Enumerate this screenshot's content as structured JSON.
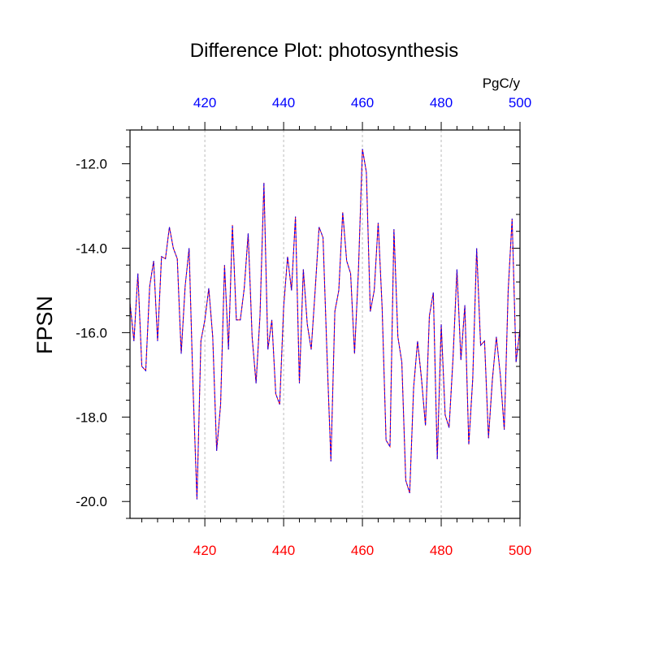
{
  "chart_data": {
    "type": "line",
    "title": "Difference Plot: photosynthesis",
    "units": "PgC/y",
    "ylabel": "FPSN",
    "xlabel": "",
    "xlim": [
      401,
      500
    ],
    "ylim": [
      -20.4,
      -11.2
    ],
    "x_ticks": [
      420,
      440,
      460,
      480,
      500
    ],
    "x_tick_labels": [
      "420",
      "440",
      "460",
      "480",
      "500"
    ],
    "y_ticks": [
      -20,
      -18,
      -16,
      -14,
      -12
    ],
    "y_tick_labels": [
      "-20.0",
      "-18.0",
      "-16.0",
      "-14.0",
      "-12.0"
    ],
    "grid": "vertical dashed at major x ticks",
    "colors": {
      "line_a": "#ff0000",
      "line_b": "#0000ff",
      "bottom_ticks": "#ff0000",
      "top_ticks": "#0000ff",
      "grid": "#bbbbbb"
    },
    "series": [
      {
        "x": [
          401,
          402,
          403,
          404,
          405,
          406,
          407,
          408,
          409,
          410,
          411,
          412,
          413,
          414,
          415,
          416,
          417,
          418,
          419,
          420,
          421,
          422,
          423,
          424,
          425,
          426,
          427,
          428,
          429,
          430,
          431,
          432,
          433,
          434,
          435,
          436,
          437,
          438,
          439,
          440,
          441,
          442,
          443,
          444,
          445,
          446,
          447,
          448,
          449,
          450,
          451,
          452,
          453,
          454,
          455,
          456,
          457,
          458,
          459,
          460,
          461,
          462,
          463,
          464,
          465,
          466,
          467,
          468,
          469,
          470,
          471,
          472,
          473,
          474,
          475,
          476,
          477,
          478,
          479,
          480,
          481,
          482,
          483,
          484,
          485,
          486,
          487,
          488,
          489,
          490,
          491,
          492,
          493,
          494,
          495,
          496,
          497,
          498,
          499,
          500
        ],
        "values": [
          -15.3,
          -16.2,
          -14.6,
          -16.8,
          -16.9,
          -14.9,
          -14.3,
          -16.2,
          -14.2,
          -14.25,
          -13.5,
          -14.0,
          -14.25,
          -16.5,
          -14.9,
          -14.0,
          -17.3,
          -19.95,
          -16.2,
          -15.7,
          -14.95,
          -16.1,
          -18.8,
          -17.7,
          -14.4,
          -16.4,
          -13.45,
          -15.7,
          -15.7,
          -14.95,
          -13.65,
          -16.1,
          -17.2,
          -15.6,
          -12.45,
          -16.4,
          -15.7,
          -17.45,
          -17.7,
          -15.4,
          -14.2,
          -15.0,
          -13.25,
          -17.2,
          -14.5,
          -15.8,
          -16.4,
          -15.0,
          -13.5,
          -13.75,
          -16.5,
          -19.05,
          -15.5,
          -15.0,
          -13.15,
          -14.3,
          -14.6,
          -16.5,
          -14.5,
          -11.65,
          -12.2,
          -15.5,
          -15.0,
          -13.4,
          -15.4,
          -18.55,
          -18.7,
          -13.55,
          -16.1,
          -16.7,
          -19.5,
          -19.8,
          -17.3,
          -16.2,
          -17.1,
          -18.2,
          -15.6,
          -15.05,
          -19.0,
          -15.8,
          -17.95,
          -18.25,
          -16.6,
          -14.5,
          -16.65,
          -15.35,
          -18.65,
          -17.1,
          -14.0,
          -16.3,
          -16.2,
          -18.5,
          -17.1,
          -16.1,
          -17.0,
          -18.3,
          -15.0,
          -13.3,
          -16.7,
          -15.9
        ]
      }
    ]
  }
}
